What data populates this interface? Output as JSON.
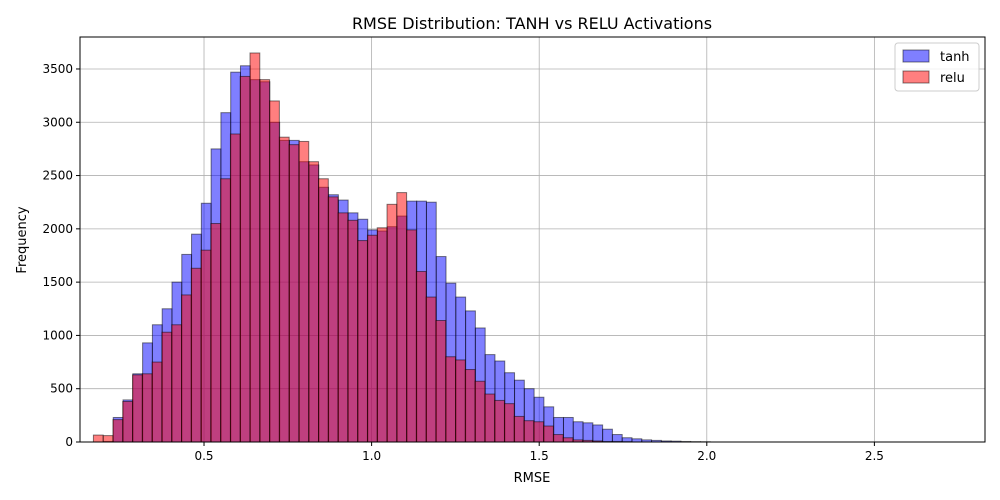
{
  "chart_data": {
    "type": "bar",
    "title": "RMSE Distribution: TANH vs RELU Activations",
    "xlabel": "RMSE",
    "ylabel": "Frequency",
    "xlim": [
      0.13,
      2.83
    ],
    "ylim": [
      0,
      3800
    ],
    "xticks": [
      0.5,
      1.0,
      1.5,
      2.0,
      2.5
    ],
    "xtick_labels": [
      "0.5",
      "1.0",
      "1.5",
      "2.0",
      "2.5"
    ],
    "yticks": [
      0,
      500,
      1000,
      1500,
      2000,
      2500,
      3000,
      3500
    ],
    "ytick_labels": [
      "0",
      "500",
      "1000",
      "1500",
      "2000",
      "2500",
      "3000",
      "3500"
    ],
    "grid": true,
    "legend_position": "top-right",
    "series": [
      {
        "name": "tanh",
        "color": "#0000ff",
        "alpha": 0.5,
        "bin_start": 0.2,
        "bin_width": 0.0292,
        "values": [
          5,
          230,
          395,
          640,
          930,
          1100,
          1250,
          1500,
          1760,
          1950,
          2240,
          2750,
          3090,
          3470,
          3530,
          3400,
          3380,
          3000,
          2830,
          2830,
          2630,
          2600,
          2390,
          2320,
          2270,
          2150,
          2090,
          1990,
          1980,
          2020,
          2120,
          2260,
          2260,
          2250,
          1740,
          1490,
          1360,
          1230,
          1070,
          820,
          760,
          650,
          580,
          500,
          420,
          330,
          230,
          230,
          190,
          180,
          160,
          120,
          70,
          40,
          30,
          20,
          15,
          10,
          8,
          5,
          3,
          2
        ]
      },
      {
        "name": "relu",
        "color": "#ff0000",
        "alpha": 0.5,
        "bin_start": 0.17,
        "bin_width": 0.0292,
        "values": [
          65,
          60,
          210,
          380,
          630,
          640,
          750,
          1030,
          1100,
          1380,
          1630,
          1800,
          2050,
          2470,
          2890,
          3430,
          3650,
          3400,
          3200,
          2860,
          2790,
          2820,
          2630,
          2470,
          2300,
          2150,
          2080,
          1890,
          1940,
          2010,
          2230,
          2340,
          1990,
          1600,
          1360,
          1140,
          800,
          770,
          680,
          570,
          450,
          390,
          360,
          240,
          200,
          190,
          150,
          70,
          40,
          20,
          15,
          10,
          5,
          5,
          3
        ]
      }
    ]
  }
}
